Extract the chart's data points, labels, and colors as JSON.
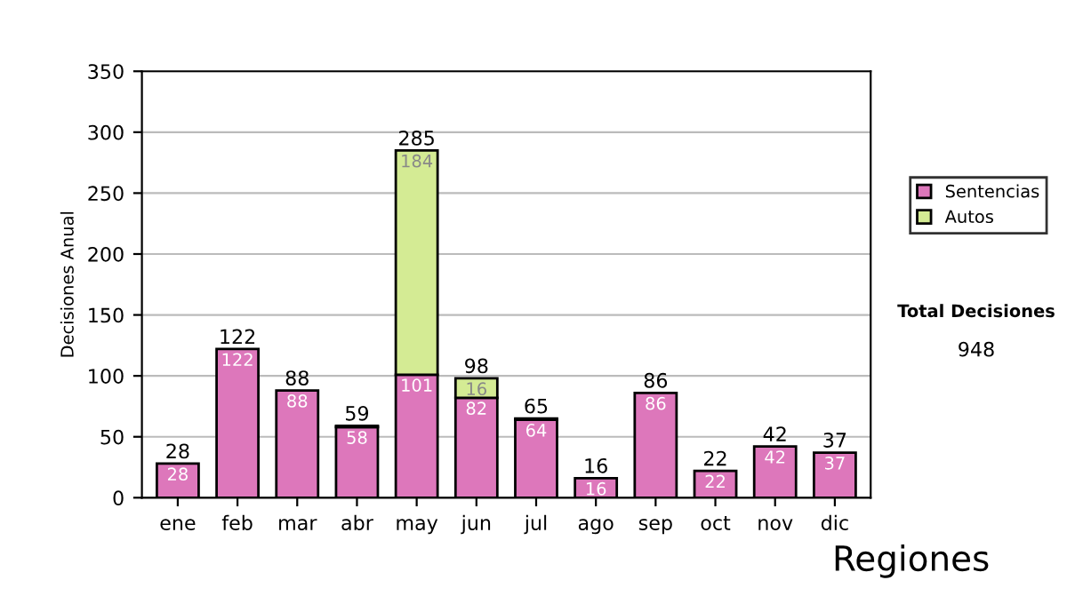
{
  "chart_data": {
    "type": "bar",
    "stacked": true,
    "ylabel": "Decisiones Anual",
    "categories": [
      "ene",
      "feb",
      "mar",
      "abr",
      "may",
      "jun",
      "jul",
      "ago",
      "sep",
      "oct",
      "nov",
      "dic"
    ],
    "series": [
      {
        "name": "Sentencias",
        "color": "#dd77bb",
        "values": [
          28,
          122,
          88,
          58,
          101,
          82,
          64,
          16,
          86,
          22,
          42,
          37
        ],
        "value_labels": [
          "28",
          "122",
          "88",
          "58",
          "101",
          "82",
          "64",
          "16",
          "86",
          "22",
          "42",
          "37"
        ]
      },
      {
        "name": "Autos",
        "color": "#d4eb94",
        "values": [
          null,
          null,
          null,
          1,
          184,
          16,
          1,
          null,
          null,
          null,
          null,
          null
        ],
        "value_labels": [
          null,
          null,
          null,
          null,
          "184",
          "16",
          null,
          null,
          null,
          null,
          null,
          null
        ]
      }
    ],
    "totals": [
      "28",
      "122",
      "88",
      "59",
      "285",
      "98",
      "65",
      "16",
      "86",
      "22",
      "42",
      "37"
    ],
    "ylim": [
      0,
      350
    ],
    "yticks": [
      0,
      50,
      100,
      150,
      200,
      250,
      300,
      350
    ],
    "grid": "y",
    "legend": "right",
    "annotations": [
      "Total Decisiones",
      "948",
      "Regiones"
    ]
  }
}
